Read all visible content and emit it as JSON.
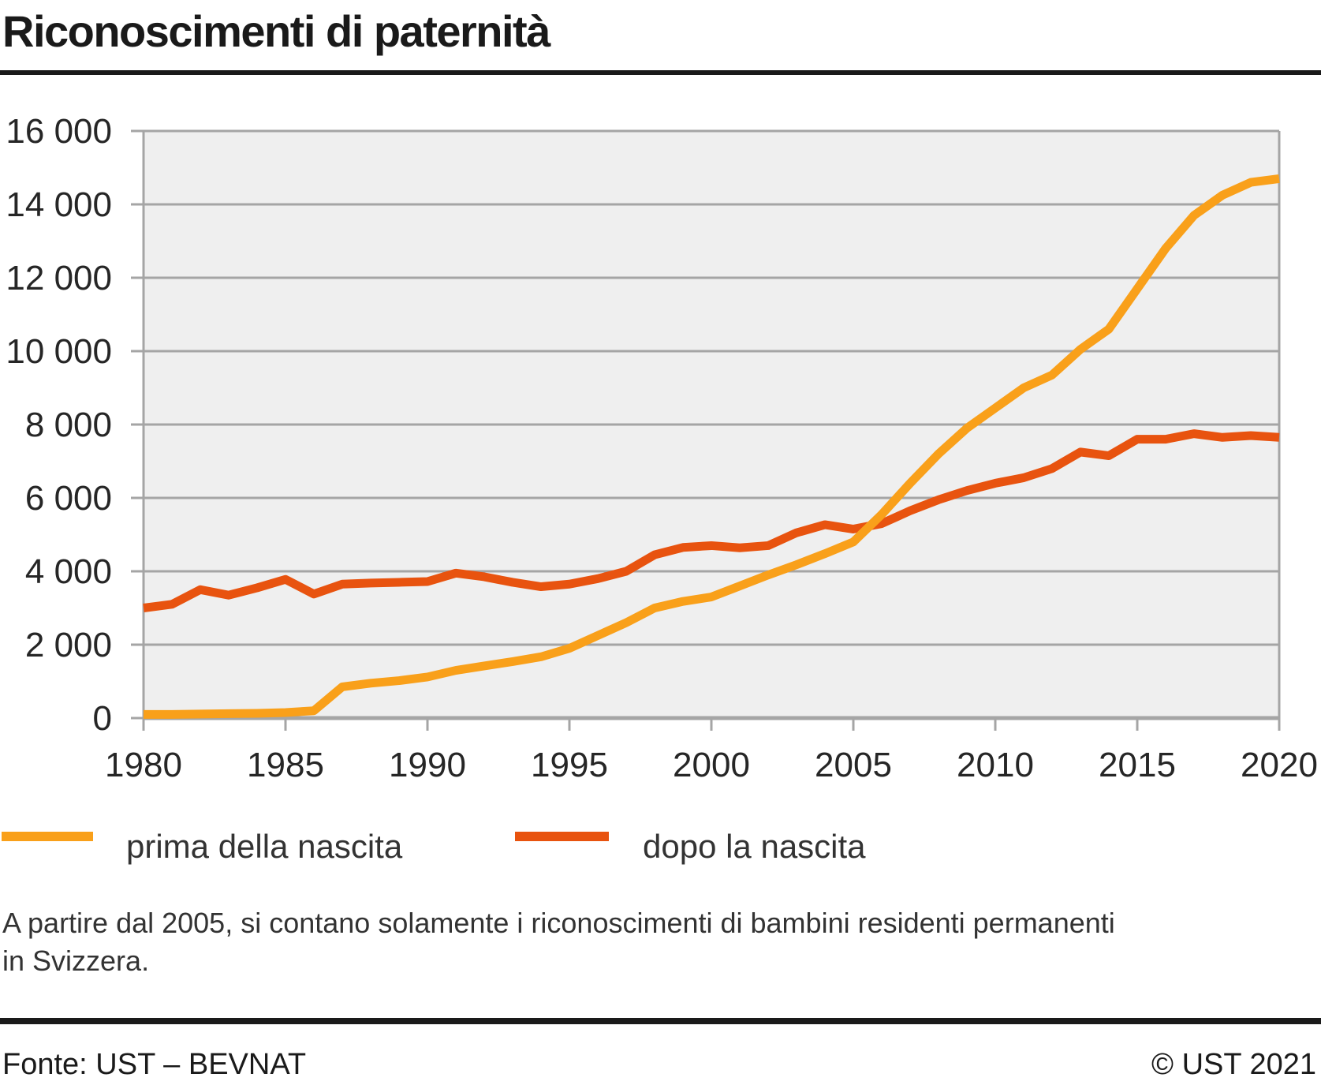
{
  "header": {
    "title": "Riconoscimenti di paternità"
  },
  "chart_data": {
    "type": "line",
    "title": "Riconoscimenti di paternità",
    "xlabel": "",
    "ylabel": "",
    "x_range": [
      1980,
      2020
    ],
    "ylim": [
      0,
      16000
    ],
    "grid": "horizontal",
    "legend_position": "bottom-left",
    "x_ticks": [
      "1980",
      "1985",
      "1990",
      "1995",
      "2000",
      "2005",
      "2010",
      "2015",
      "2020"
    ],
    "x_tick_values": [
      1980,
      1985,
      1990,
      1995,
      2000,
      2005,
      2010,
      2015,
      2020
    ],
    "y_ticks": [
      "0",
      "2 000",
      "4 000",
      "6 000",
      "8 000",
      "10 000",
      "12 000",
      "14 000",
      "16 000"
    ],
    "y_tick_values": [
      0,
      2000,
      4000,
      6000,
      8000,
      10000,
      12000,
      14000,
      16000
    ],
    "x": [
      1980,
      1981,
      1982,
      1983,
      1984,
      1985,
      1986,
      1987,
      1988,
      1989,
      1990,
      1991,
      1992,
      1993,
      1994,
      1995,
      1996,
      1997,
      1998,
      1999,
      2000,
      2001,
      2002,
      2003,
      2004,
      2005,
      2006,
      2007,
      2008,
      2009,
      2010,
      2011,
      2012,
      2013,
      2014,
      2015,
      2016,
      2017,
      2018,
      2019,
      2020
    ],
    "series": [
      {
        "id": "prima",
        "name": "prima della nascita",
        "color": "#F9A01A",
        "values": [
          100,
          100,
          110,
          120,
          130,
          150,
          200,
          850,
          950,
          1020,
          1120,
          1300,
          1420,
          1540,
          1670,
          1900,
          2250,
          2600,
          3000,
          3180,
          3300,
          3600,
          3900,
          4180,
          4480,
          4800,
          5550,
          6400,
          7200,
          7900,
          8450,
          9000,
          9350,
          10050,
          10600,
          11700,
          12800,
          13700,
          14250,
          14600,
          14700
        ]
      },
      {
        "id": "dopo",
        "name": "dopo la nascita",
        "color": "#E8530F",
        "values": [
          3000,
          3100,
          3500,
          3350,
          3550,
          3780,
          3380,
          3650,
          3680,
          3700,
          3720,
          3950,
          3850,
          3700,
          3580,
          3650,
          3800,
          4000,
          4450,
          4650,
          4700,
          4640,
          4700,
          5050,
          5270,
          5150,
          5300,
          5650,
          5950,
          6200,
          6400,
          6550,
          6800,
          7250,
          7150,
          7600,
          7600,
          7750,
          7650,
          7700,
          7650
        ]
      }
    ],
    "colors": {
      "plot_bg": "#EFEFEF",
      "grid": "#A5A5A5",
      "tick_text": "#262626"
    }
  },
  "footnote": {
    "lines": [
      "A partire dal 2005, si contano solamente i riconoscimenti di bambini residenti permanenti",
      "in Svizzera."
    ]
  },
  "footer": {
    "source": "Fonte: UST – BEVNAT",
    "copyright": "© UST 2021"
  }
}
